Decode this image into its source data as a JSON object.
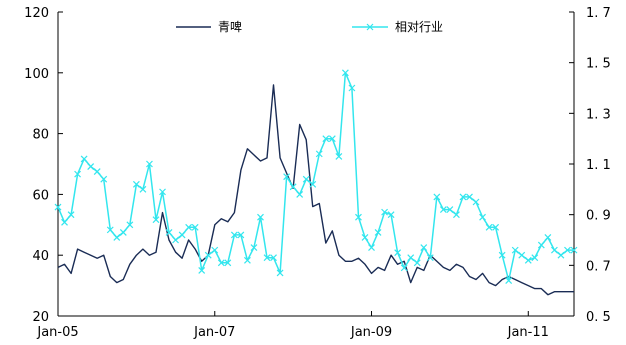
{
  "chart_data": {
    "type": "line",
    "legend": "top",
    "grid": false,
    "x_range": [
      "2005-01",
      "2011-08"
    ],
    "x_tick_labels": [
      "Jan-05",
      "Jan-07",
      "Jan-09",
      "Jan-11"
    ],
    "x_tick_dates": [
      "2005-01",
      "2007-01",
      "2009-01",
      "2011-01"
    ],
    "y_left": {
      "range": [
        20,
        120
      ],
      "tick_labels": [
        "20",
        "40",
        "60",
        "80",
        "100",
        "120"
      ],
      "tick_values": [
        20,
        40,
        60,
        80,
        100,
        120
      ]
    },
    "y_right": {
      "range": [
        0.5,
        1.7
      ],
      "tick_labels": [
        "0. 5",
        "0. 7",
        "0. 9",
        "1. 1",
        "1. 3",
        "1. 5",
        "1. 7"
      ],
      "tick_values": [
        0.5,
        0.7,
        0.9,
        1.1,
        1.3,
        1.5,
        1.7
      ]
    },
    "series": [
      {
        "name": "青啤",
        "axis": "left",
        "color": "#1a2c55",
        "marker": "none",
        "x": [
          "2005-01",
          "2005-02",
          "2005-03",
          "2005-04",
          "2005-05",
          "2005-06",
          "2005-07",
          "2005-08",
          "2005-09",
          "2005-10",
          "2005-11",
          "2005-12",
          "2006-01",
          "2006-02",
          "2006-03",
          "2006-04",
          "2006-05",
          "2006-06",
          "2006-07",
          "2006-08",
          "2006-09",
          "2006-10",
          "2006-11",
          "2006-12",
          "2007-01",
          "2007-02",
          "2007-03",
          "2007-04",
          "2007-05",
          "2007-06",
          "2007-07",
          "2007-08",
          "2007-09",
          "2007-10",
          "2007-11",
          "2007-12",
          "2008-01",
          "2008-02",
          "2008-03",
          "2008-04",
          "2008-05",
          "2008-06",
          "2008-07",
          "2008-08",
          "2008-09",
          "2008-10",
          "2008-11",
          "2008-12",
          "2009-01",
          "2009-02",
          "2009-03",
          "2009-04",
          "2009-05",
          "2009-06",
          "2009-07",
          "2009-08",
          "2009-09",
          "2009-10",
          "2009-11",
          "2009-12",
          "2010-01",
          "2010-02",
          "2010-03",
          "2010-04",
          "2010-05",
          "2010-06",
          "2010-07",
          "2010-08",
          "2010-09",
          "2010-10",
          "2010-11",
          "2010-12",
          "2011-01",
          "2011-02",
          "2011-03",
          "2011-04",
          "2011-05",
          "2011-06",
          "2011-07",
          "2011-08"
        ],
        "values": [
          36,
          37,
          34,
          42,
          41,
          40,
          39,
          40,
          33,
          31,
          32,
          37,
          40,
          42,
          40,
          41,
          54,
          45,
          41,
          39,
          45,
          42,
          38,
          40,
          50,
          52,
          51,
          54,
          68,
          75,
          73,
          71,
          72,
          96,
          72,
          67,
          62,
          83,
          78,
          56,
          57,
          44,
          48,
          40,
          38,
          38,
          39,
          37,
          34,
          36,
          35,
          40,
          37,
          38,
          31,
          36,
          35,
          40,
          38,
          36,
          35,
          37,
          36,
          33,
          32,
          34,
          31,
          30,
          32,
          33,
          32,
          31,
          30,
          29,
          29,
          27,
          28,
          28,
          28,
          28
        ]
      },
      {
        "name": "相对行业",
        "axis": "right",
        "color": "#33e6ee",
        "marker": "x",
        "x": [
          "2005-01",
          "2005-02",
          "2005-03",
          "2005-04",
          "2005-05",
          "2005-06",
          "2005-07",
          "2005-08",
          "2005-09",
          "2005-10",
          "2005-11",
          "2005-12",
          "2006-01",
          "2006-02",
          "2006-03",
          "2006-04",
          "2006-05",
          "2006-06",
          "2006-07",
          "2006-08",
          "2006-09",
          "2006-10",
          "2006-11",
          "2006-12",
          "2007-01",
          "2007-02",
          "2007-03",
          "2007-04",
          "2007-05",
          "2007-06",
          "2007-07",
          "2007-08",
          "2007-09",
          "2007-10",
          "2007-11",
          "2007-12",
          "2008-01",
          "2008-02",
          "2008-03",
          "2008-04",
          "2008-05",
          "2008-06",
          "2008-07",
          "2008-08",
          "2008-09",
          "2008-10",
          "2008-11",
          "2008-12",
          "2009-01",
          "2009-02",
          "2009-03",
          "2009-04",
          "2009-05",
          "2009-06",
          "2009-07",
          "2009-08",
          "2009-09",
          "2009-10",
          "2009-11",
          "2009-12",
          "2010-01",
          "2010-02",
          "2010-03",
          "2010-04",
          "2010-05",
          "2010-06",
          "2010-07",
          "2010-08",
          "2010-09",
          "2010-10",
          "2010-11",
          "2010-12",
          "2011-01",
          "2011-02",
          "2011-03",
          "2011-04",
          "2011-05",
          "2011-06",
          "2011-07",
          "2011-08"
        ],
        "values": [
          0.93,
          0.87,
          0.9,
          1.06,
          1.12,
          1.09,
          1.07,
          1.04,
          0.84,
          0.81,
          0.83,
          0.86,
          1.02,
          1.0,
          1.1,
          0.88,
          0.99,
          0.83,
          0.8,
          0.82,
          0.85,
          0.85,
          0.68,
          0.74,
          0.76,
          0.71,
          0.71,
          0.82,
          0.82,
          0.72,
          0.77,
          0.89,
          0.73,
          0.73,
          0.67,
          1.05,
          1.01,
          0.98,
          1.04,
          1.02,
          1.14,
          1.2,
          1.2,
          1.13,
          1.46,
          1.4,
          0.89,
          0.81,
          0.77,
          0.83,
          0.91,
          0.9,
          0.75,
          0.69,
          0.73,
          0.71,
          0.77,
          0.73,
          0.97,
          0.92,
          0.92,
          0.9,
          0.97,
          0.97,
          0.95,
          0.89,
          0.85,
          0.85,
          0.74,
          0.64,
          0.76,
          0.74,
          0.72,
          0.73,
          0.78,
          0.81,
          0.76,
          0.74,
          0.76,
          0.76
        ]
      }
    ]
  }
}
